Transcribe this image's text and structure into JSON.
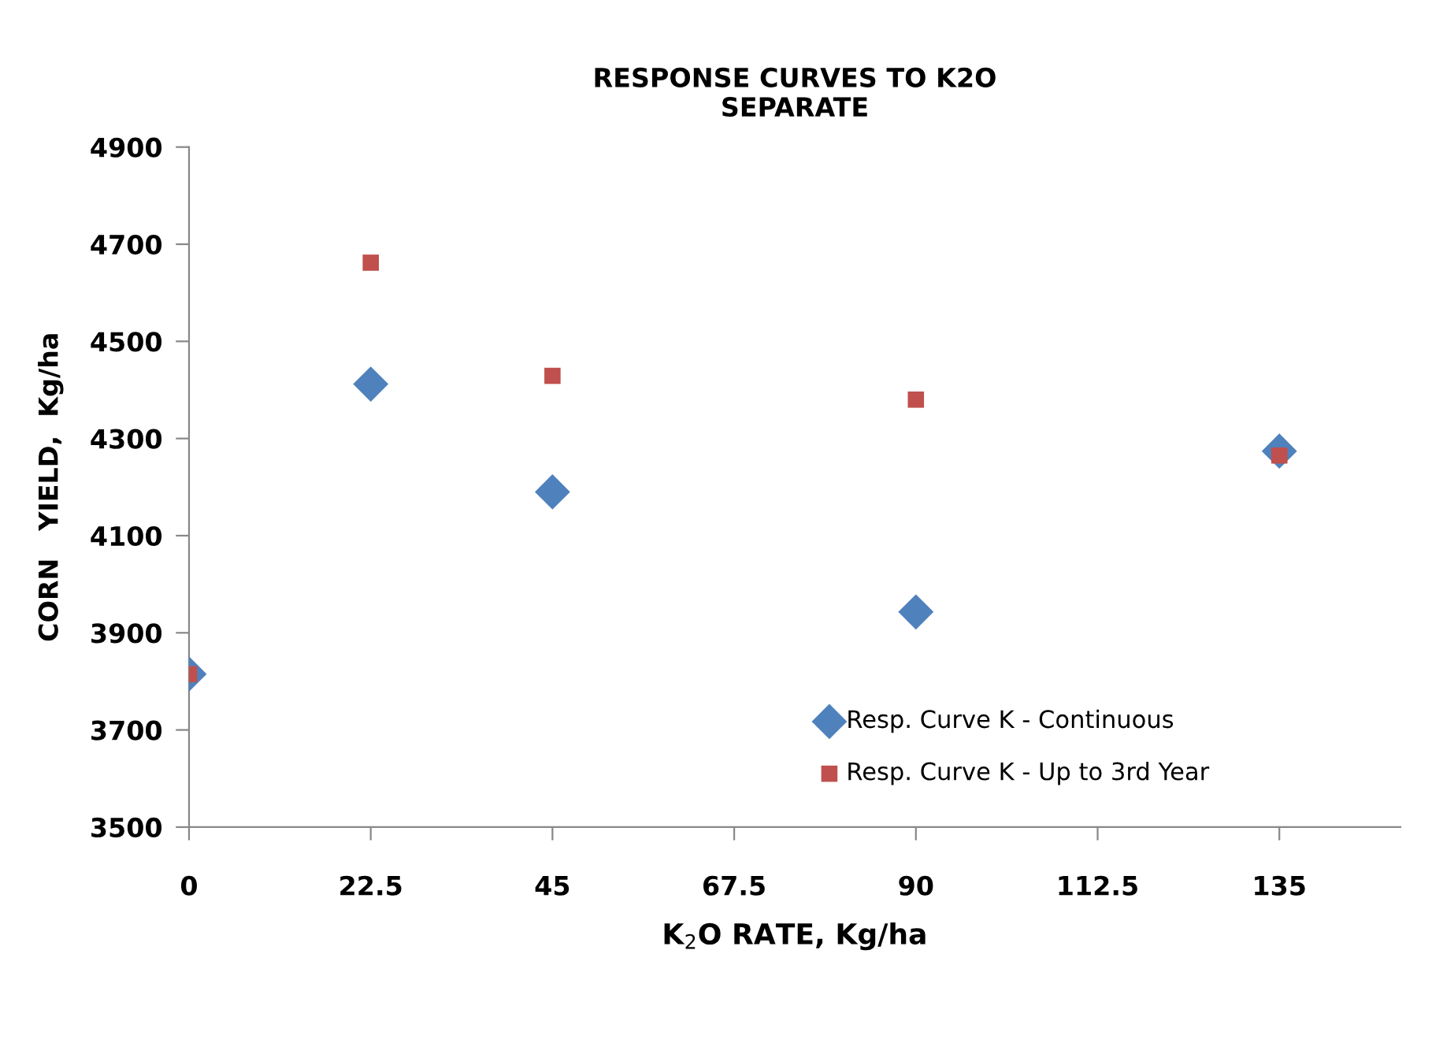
{
  "chart_data": {
    "type": "scatter",
    "title": "RESPONSE CURVES TO K2O\nSEPARATE",
    "xlabel": "K$_{2}$O RATE, Kg/ha",
    "ylabel": "CORN   YIELD,  Kg/ha",
    "x": [
      0,
      22.5,
      45,
      90,
      135
    ],
    "series": [
      {
        "name": "Resp. Curve K - Continuous",
        "color": "#4f81bd",
        "marker": "diamond",
        "values": [
          3815,
          4412,
          4190,
          3943,
          4274
        ]
      },
      {
        "name": "Resp. Curve K - Up to 3rd Year",
        "color": "#c0504d",
        "marker": "square",
        "values": [
          3815,
          4662,
          4429,
          4380,
          4265
        ]
      }
    ],
    "xlim": [
      0,
      150
    ],
    "xticks": [
      0,
      22.5,
      45,
      67.5,
      90,
      112.5,
      135
    ],
    "ylim": [
      3500,
      4900
    ],
    "yticks": [
      3500,
      3700,
      3900,
      4100,
      4300,
      4500,
      4700,
      4900
    ],
    "grid": false,
    "legend": "bottom right"
  }
}
